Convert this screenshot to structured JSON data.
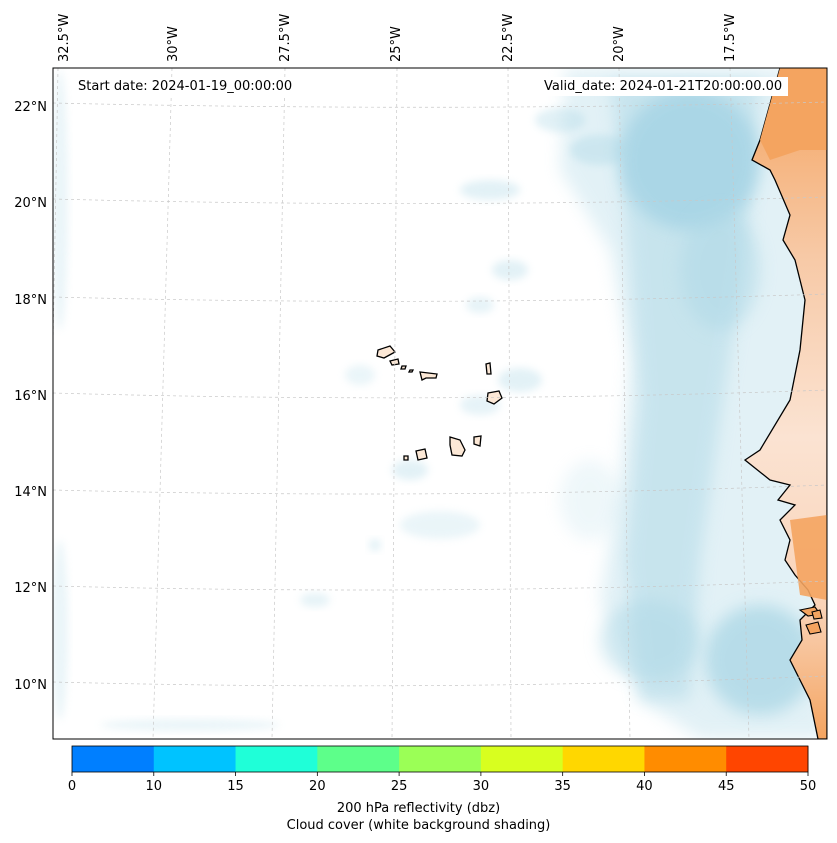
{
  "annotations": {
    "start_label": "Start date: 2024-01-19_00:00:00",
    "valid_label": "Valid_date: 2024-01-21T20:00:00.00"
  },
  "axes": {
    "lon_ticks": [
      "32.5°W",
      "30°W",
      "27.5°W",
      "25°W",
      "22.5°W",
      "20°W",
      "17.5°W"
    ],
    "lat_ticks": [
      "22°N",
      "20°N",
      "18°N",
      "16°N",
      "14°N",
      "12°N",
      "10°N"
    ]
  },
  "colorbar": {
    "ticks": [
      "0",
      "10",
      "15",
      "20",
      "25",
      "30",
      "35",
      "40",
      "45",
      "50"
    ],
    "colors": [
      "#007fff",
      "#00c3ff",
      "#1fffd8",
      "#5dff8a",
      "#9bff56",
      "#d8ff1f",
      "#ffd700",
      "#ff8c00",
      "#ff4500"
    ],
    "label_line1": "200 hPa reflectivity (dbz)",
    "label_line2": "Cloud cover (white background shading)"
  },
  "map": {
    "ocean_color": "#ffffff",
    "land_color": "#f4a460",
    "cloud_color": "#add8e6",
    "region": "Cabo Verde and West African coast"
  }
}
